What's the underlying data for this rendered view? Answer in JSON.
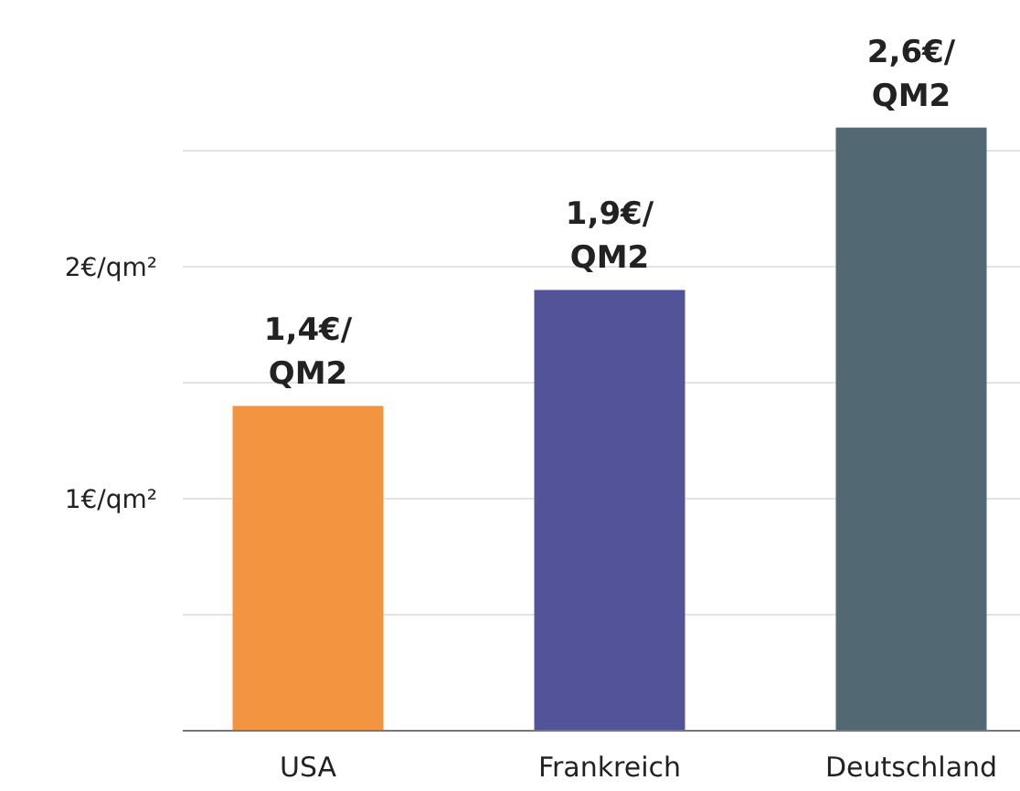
{
  "chart_data": {
    "type": "bar",
    "categories": [
      "USA",
      "Frankreich",
      "Deutschland"
    ],
    "values": [
      1.4,
      1.9,
      2.6
    ],
    "colors": [
      "#f39440",
      "#535399",
      "#526872"
    ],
    "value_labels": [
      "1,4€/QM2",
      "1,9€/QM2",
      "2,6€/QM2"
    ],
    "ylim": [
      0,
      3.15
    ],
    "yticks": [
      {
        "value": 0.5,
        "label": null
      },
      {
        "value": 1,
        "label": "1€/qm²"
      },
      {
        "value": 1.5,
        "label": null
      },
      {
        "value": 2,
        "label": "2€/qm²"
      },
      {
        "value": 2.5,
        "label": null
      }
    ],
    "grid": "y"
  }
}
